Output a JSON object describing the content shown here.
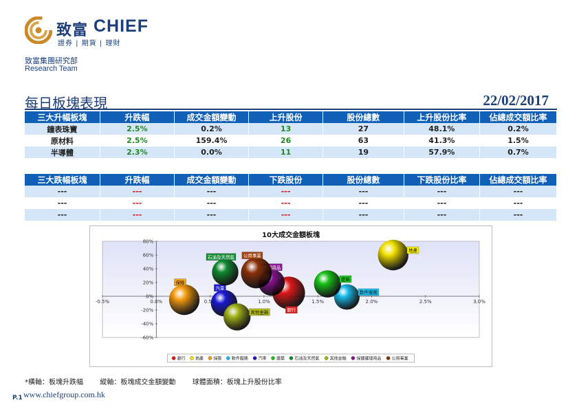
{
  "header": {
    "brand_cn": "致富",
    "brand_en": "CHIEF",
    "brand_sub": "證券 | 期貨 | 理財",
    "dept_cn": "致富集團研究部",
    "dept_en": "Research Team"
  },
  "report": {
    "title": "每日板塊表現",
    "date": "22/02/2017"
  },
  "top_table": {
    "headers": [
      "三大升幅板塊",
      "升跌幅",
      "成交金額變動",
      "上升股份",
      "股份總數",
      "上升股份比率",
      "佔總成交額比率"
    ],
    "rows": [
      [
        "鐘表珠寶",
        "2.5%",
        "0.2%",
        "13",
        "27",
        "48.1%",
        "0.2%"
      ],
      [
        "原材料",
        "2.5%",
        "159.4%",
        "26",
        "63",
        "41.3%",
        "1.5%"
      ],
      [
        "半導體",
        "2.3%",
        "0.0%",
        "11",
        "19",
        "57.9%",
        "0.7%"
      ]
    ]
  },
  "bottom_table": {
    "headers": [
      "三大跌幅板塊",
      "升跌幅",
      "成交金額變動",
      "下跌股份",
      "股份總數",
      "下跌股份比率",
      "佔總成交額比率"
    ],
    "rows": [
      [
        "---",
        "---",
        "---",
        "---",
        "---",
        "---",
        "---"
      ],
      [
        "---",
        "---",
        "---",
        "---",
        "---",
        "---",
        "---"
      ],
      [
        "---",
        "---",
        "---",
        "---",
        "---",
        "---",
        "---"
      ]
    ]
  },
  "chart_data": {
    "type": "scatter",
    "title": "10大成交金額板塊",
    "xlim": [
      -0.005,
      0.03
    ],
    "ylim": [
      -0.6,
      0.8
    ],
    "x_ticks": [
      "-0.5%",
      "0.0%",
      "0.5%",
      "1.0%",
      "1.5%",
      "2.0%",
      "2.5%",
      "3.0%"
    ],
    "x_tick_values": [
      -0.005,
      0,
      0.005,
      0.01,
      0.015,
      0.02,
      0.025,
      0.03
    ],
    "y_ticks": [
      "80%",
      "60%",
      "40%",
      "20%",
      "0%",
      "-20%",
      "-40%",
      "-60%"
    ],
    "y_tick_values": [
      0.8,
      0.6,
      0.4,
      0.2,
      0,
      -0.2,
      -0.4,
      -0.6
    ],
    "grid": false,
    "legend_position": "bottom",
    "series": [
      {
        "name": "銀行",
        "label": "銀行",
        "x": 0.0123,
        "y": 0.05,
        "size": 0.5,
        "color": "#e01818",
        "label_bg": "#e01818",
        "label_pos": "below"
      },
      {
        "name": "地產",
        "label": "地產",
        "x": 0.022,
        "y": 0.6,
        "size": 0.42,
        "color": "#f0e000",
        "label_bg": "#f6f000",
        "label_pos": "right"
      },
      {
        "name": "保險",
        "label": "保險",
        "x": 0.0026,
        "y": -0.05,
        "size": 0.42,
        "color": "#f59a10",
        "label_bg": "#f7a018",
        "label_pos": "above"
      },
      {
        "name": "軟件服務",
        "label": "軟件服務",
        "x": 0.0177,
        "y": -0.01,
        "size": 0.25,
        "color": "#18b8e8",
        "label_bg": "#20c0f0",
        "label_pos": "right"
      },
      {
        "name": "汽車",
        "label": "汽車",
        "x": 0.0063,
        "y": -0.1,
        "size": 0.28,
        "color": "#1818d0",
        "label_bg": "#1c1cd8",
        "label_pos": "above"
      },
      {
        "name": "建築",
        "label": "建築",
        "x": 0.0159,
        "y": 0.18,
        "size": 0.3,
        "color": "#18c018",
        "label_bg": "#20c820",
        "label_pos": "right"
      },
      {
        "name": "石油及天然氣",
        "label": "石油及天然氣",
        "x": 0.0064,
        "y": 0.35,
        "size": 0.28,
        "color": "#108a30",
        "label_bg": "#188c38",
        "label_pos": "above"
      },
      {
        "name": "其他金融",
        "label": "其他金融",
        "x": 0.0075,
        "y": -0.3,
        "size": 0.3,
        "color": "#a0b018",
        "label_bg": "#b8c018",
        "label_pos": "right"
      },
      {
        "name": "保健護理用品",
        "label": "保健護理用品",
        "x": 0.0107,
        "y": 0.2,
        "size": 0.28,
        "color": "#8a1090",
        "label_bg": "#901898",
        "label_pos": "above"
      },
      {
        "name": "公用事業",
        "label": "公用事業",
        "x": 0.0093,
        "y": 0.34,
        "size": 0.43,
        "color": "#8a3008",
        "label_bg": "#a04010",
        "label_pos": "above"
      }
    ]
  },
  "footnote": {
    "x_desc": "*橫軸：板塊升跌幅",
    "y_desc": "縱軸：板塊成交金額變動",
    "size_desc": "球體面積：板塊上升股份比率"
  },
  "footer": {
    "page": "P.1",
    "url": "www.chiefgroup.com.hk"
  }
}
